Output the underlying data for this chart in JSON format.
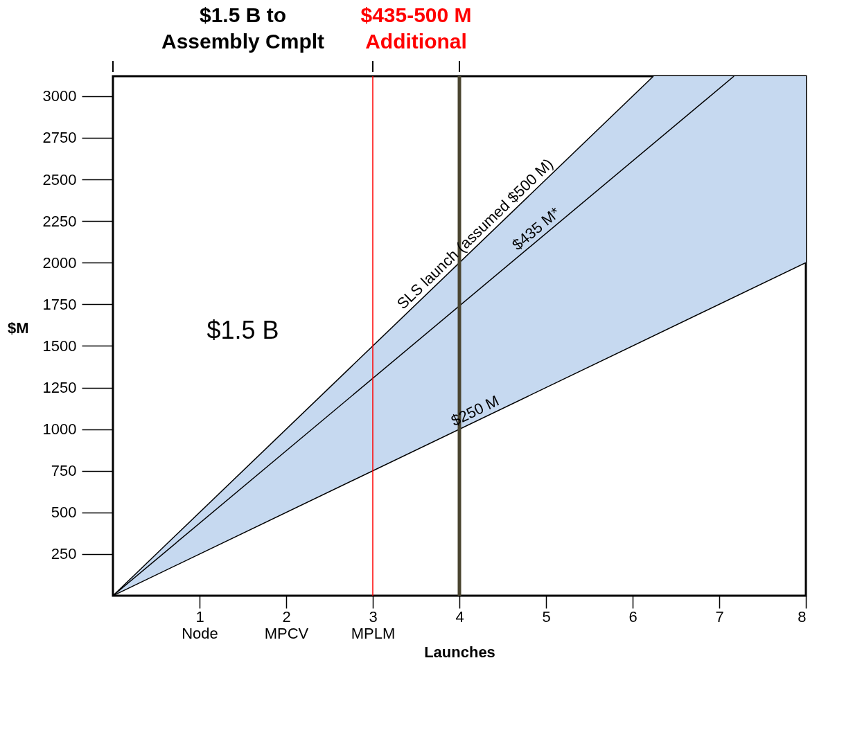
{
  "chart_data": {
    "type": "line",
    "xlabel": "Launches",
    "ylabel": "$M",
    "xlim": [
      0,
      8
    ],
    "ylim": [
      0,
      3120
    ],
    "xticks": [
      {
        "value": 1,
        "label": "1\nNode"
      },
      {
        "value": 2,
        "label": "2\nMPCV"
      },
      {
        "value": 3,
        "label": "3\nMPLM"
      },
      4,
      5,
      6,
      7,
      8
    ],
    "yticks": [
      250,
      500,
      750,
      1000,
      1250,
      1500,
      1750,
      2000,
      2250,
      2500,
      2750,
      3000
    ],
    "grid": false,
    "series": [
      {
        "color": "#000000",
        "x": [
          0,
          6.24,
          8
        ],
        "values": [
          0,
          3120,
          null
        ],
        "upper": [
          0,
          3120,
          3120
        ],
        "lower": [
          0,
          1560,
          2000
        ]
      },
      {
        "color": "#000000",
        "x": [
          0,
          7.17
        ],
        "values": [
          0,
          3120
        ]
      },
      {
        "color": "#000000",
        "x": [
          0,
          8
        ],
        "values": [
          0,
          2000
        ]
      }
    ],
    "ref_lines": [
      {
        "axis": "x",
        "value": 3,
        "label": "$435-500 M\nAdditional",
        "color": "#ff0000"
      },
      {
        "axis": "x",
        "value": 4,
        "label": null,
        "color": "#4a4530"
      }
    ],
    "annotations": [
      "$1.5 B to\nAssembly Cmplt",
      "$1.5 B",
      {
        "text": "SLS launch (assumed $500 M)",
        "x": 4.26,
        "y": 2130
      },
      {
        "text": "$435 M*",
        "x": 4.96,
        "y": 2158
      },
      {
        "text": "$250 M",
        "x": 4.23,
        "y": 1057
      }
    ]
  }
}
